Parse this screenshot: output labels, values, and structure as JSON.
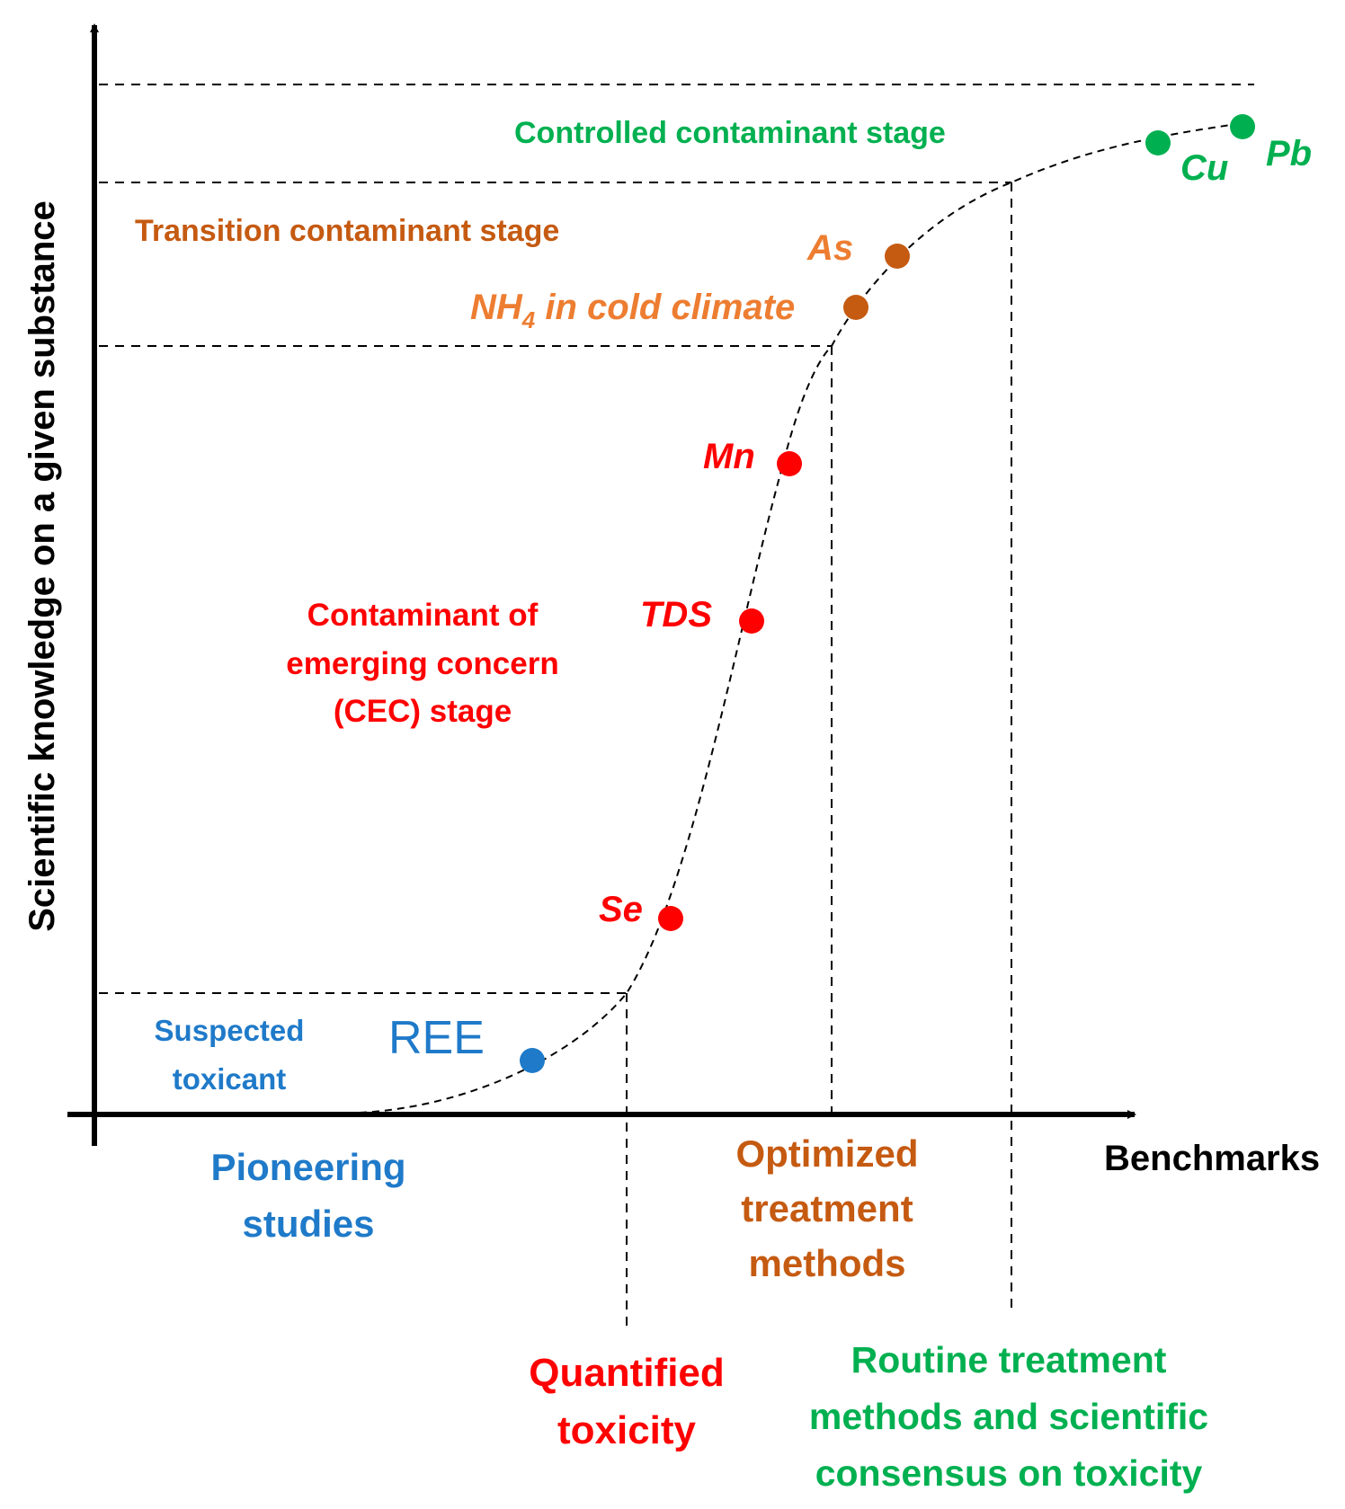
{
  "colors": {
    "black": "#000000",
    "blue": "#1f7ac9",
    "red": "#ff0000",
    "orange": "#c55a11",
    "green": "#00b050"
  },
  "axes": {
    "y_label": "Scientific knowledge on a given substance",
    "x_label": "Benchmarks"
  },
  "stages": {
    "controlled": "Controlled contaminant stage",
    "transition": "Transition contaminant stage",
    "cec_line1": "Contaminant of",
    "cec_line2": "emerging concern",
    "cec_line3": "(CEC) stage",
    "suspected_line1": "Suspected",
    "suspected_line2": "toxicant"
  },
  "substances": {
    "ree": "REE",
    "se": "Se",
    "tds": "TDS",
    "mn": "Mn",
    "nh4_main": "NH",
    "nh4_sub": "4",
    "nh4_rest": " in cold climate",
    "as": "As",
    "cu": "Cu",
    "pb": "Pb"
  },
  "benchmarks": {
    "pioneering_line1": "Pioneering",
    "pioneering_line2": "studies",
    "quantified_line1": "Quantified",
    "quantified_line2": "toxicity",
    "optimized_line1": "Optimized",
    "optimized_line2": "treatment",
    "optimized_line3": "methods",
    "routine_line1": "Routine treatment",
    "routine_line2": "methods and scientific",
    "routine_line3": "consensus on toxicity"
  }
}
